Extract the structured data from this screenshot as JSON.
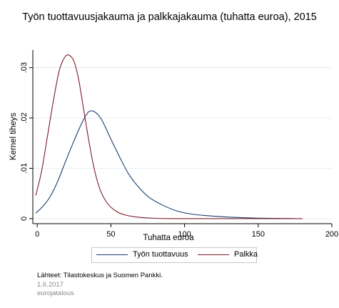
{
  "chart_data": {
    "type": "line",
    "title": "Työn tuottavuusjakauma ja palkkajakauma (tuhatta euroa), 2015",
    "xlabel": "Tuhatta euroa",
    "ylabel": "Kernel tiheys",
    "xlim": [
      -3,
      200
    ],
    "ylim": [
      -0.001,
      0.0335
    ],
    "x_ticks": [
      0,
      50,
      100,
      150,
      200
    ],
    "x_tick_labels": [
      "0",
      "50",
      "100",
      "150",
      "200"
    ],
    "y_ticks": [
      0,
      0.01,
      0.02,
      0.03
    ],
    "y_tick_labels": [
      "0",
      ".01",
      ".02",
      ".03"
    ],
    "grid": true,
    "legend_position": "bottom",
    "series": [
      {
        "name": "Työn tuottavuus",
        "color": "#1a3e6e",
        "x": [
          -1,
          4,
          9,
          14,
          19,
          24,
          29,
          33,
          36,
          40,
          44,
          50,
          56,
          62,
          69,
          76,
          85,
          95,
          105,
          115,
          130,
          150,
          175
        ],
        "y": [
          0.0011,
          0.0025,
          0.0045,
          0.0075,
          0.0112,
          0.0148,
          0.0182,
          0.0205,
          0.0214,
          0.021,
          0.0195,
          0.0158,
          0.0122,
          0.0089,
          0.0062,
          0.0042,
          0.0027,
          0.0015,
          0.0009,
          0.0006,
          0.0003,
          0.0001,
          0.0
        ]
      },
      {
        "name": "Palkka",
        "color": "#7b1d2a",
        "x": [
          -1,
          3,
          7,
          11,
          15,
          19,
          22,
          25,
          28,
          31,
          35,
          39,
          43,
          48,
          54,
          60,
          68,
          78,
          90,
          110,
          140,
          180
        ],
        "y": [
          0.0046,
          0.0095,
          0.0165,
          0.0235,
          0.0295,
          0.0322,
          0.0324,
          0.0312,
          0.0278,
          0.0226,
          0.0155,
          0.0095,
          0.0055,
          0.0029,
          0.0014,
          0.0007,
          0.0003,
          0.0001,
          0.0,
          0.0,
          0.0,
          0.0
        ]
      }
    ]
  },
  "footer": {
    "source": "Lähteet: Tilastokeskus ja Suomen Pankki.",
    "date": "1.6.2017",
    "brand": "eurojatalous"
  }
}
